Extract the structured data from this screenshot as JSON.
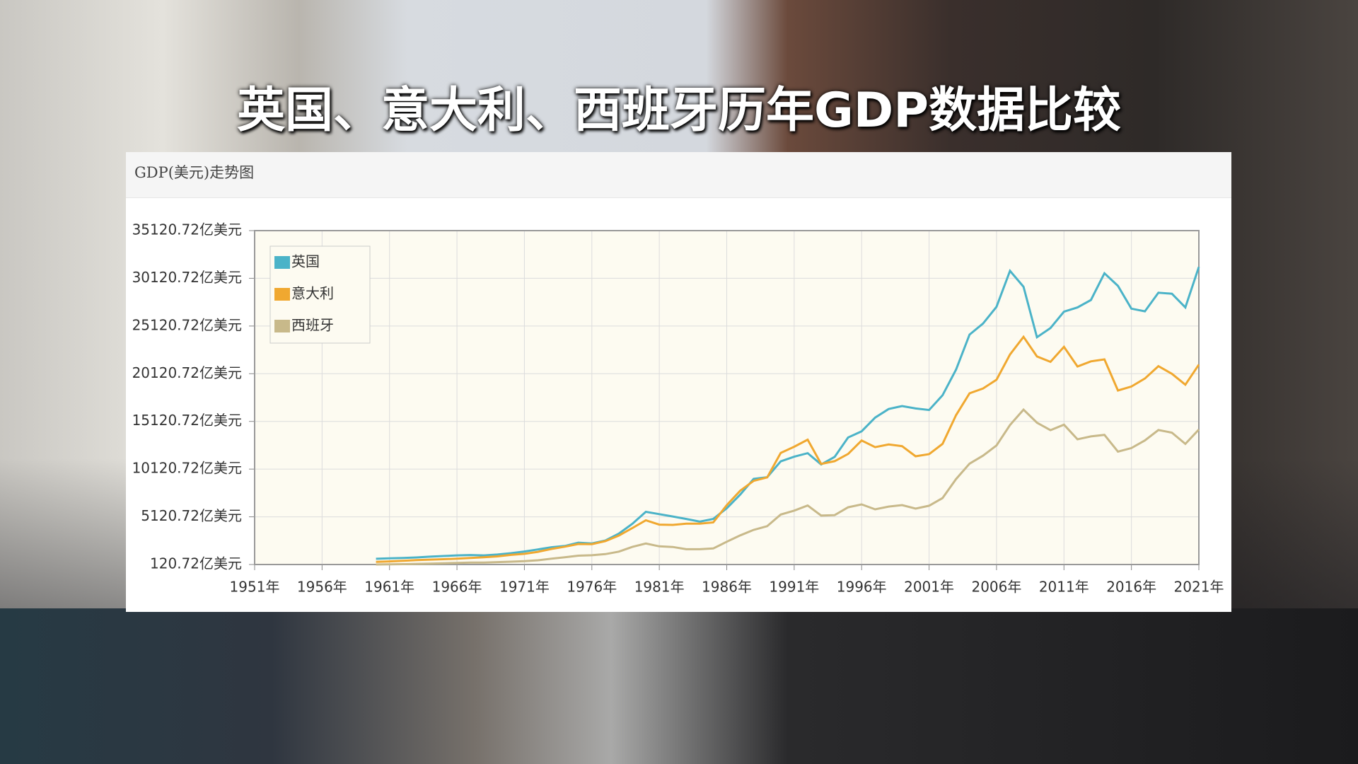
{
  "chart_data": {
    "type": "line",
    "title": "英国、意大利、西班牙历年GDP数据比较",
    "subtitle": "GDP(美元)走势图",
    "x": [
      1960,
      1961,
      1962,
      1963,
      1964,
      1965,
      1966,
      1967,
      1968,
      1969,
      1970,
      1971,
      1972,
      1973,
      1974,
      1975,
      1976,
      1977,
      1978,
      1979,
      1980,
      1981,
      1982,
      1983,
      1984,
      1985,
      1986,
      1987,
      1988,
      1989,
      1990,
      1991,
      1992,
      1993,
      1994,
      1995,
      1996,
      1997,
      1998,
      1999,
      2000,
      2001,
      2002,
      2003,
      2004,
      2005,
      2006,
      2007,
      2008,
      2009,
      2010,
      2011,
      2012,
      2013,
      2014,
      2015,
      2016,
      2017,
      2018,
      2019,
      2020,
      2021
    ],
    "series": [
      {
        "name": "英国",
        "color": "#4bb3c8",
        "values": [
          723,
          770,
          810,
          862,
          943,
          1013,
          1075,
          1114,
          1075,
          1167,
          1310,
          1484,
          1698,
          1929,
          2063,
          2415,
          2329,
          2632,
          3358,
          4384,
          5647,
          5403,
          5152,
          4898,
          4617,
          4893,
          6018,
          7458,
          9102,
          9268,
          10930,
          11425,
          11796,
          10612,
          11408,
          13441,
          14087,
          15524,
          16416,
          16728,
          16479,
          16319,
          17859,
          20547,
          24219,
          25385,
          27131,
          30905,
          29231,
          23944,
          24913,
          26622,
          27070,
          27847,
          30650,
          29329,
          26941,
          26660,
          28609,
          28510,
          27070,
          31313
        ]
      },
      {
        "name": "意大利",
        "color": "#f0a830",
        "values": [
          402,
          448,
          504,
          578,
          631,
          678,
          730,
          811,
          878,
          973,
          1131,
          1241,
          1446,
          1751,
          1992,
          2274,
          2256,
          2573,
          3150,
          3941,
          4752,
          4301,
          4275,
          4403,
          4397,
          4535,
          6343,
          7862,
          8895,
          9258,
          11815,
          12467,
          13208,
          10663,
          10955,
          11708,
          13122,
          12424,
          12707,
          12523,
          11467,
          11685,
          12764,
          15776,
          18064,
          18579,
          19493,
          22134,
          23985,
          21926,
          21366,
          22941,
          20874,
          21418,
          21625,
          18363,
          18779,
          19615,
          20916,
          20115,
          18968,
          21077
        ]
      },
      {
        "name": "西班牙",
        "color": "#c8b98a",
        "values": [
          120,
          139,
          160,
          191,
          218,
          255,
          294,
          328,
          327,
          371,
          414,
          468,
          568,
          727,
          886,
          1047,
          1095,
          1214,
          1470,
          1969,
          2324,
          2026,
          1962,
          1719,
          1724,
          1802,
          2508,
          3175,
          3754,
          4137,
          5354,
          5771,
          6306,
          5252,
          5299,
          6121,
          6420,
          5905,
          6192,
          6346,
          5982,
          6281,
          7087,
          9079,
          10696,
          11535,
          12602,
          14741,
          16352,
          14992,
          14201,
          14783,
          13248,
          13552,
          13716,
          11958,
          12328,
          13128,
          14217,
          13942,
          12765,
          14272
        ]
      }
    ],
    "xlim": [
      1951,
      2021
    ],
    "xticks": [
      {
        "value": 1951,
        "label": "1951年"
      },
      {
        "value": 1956,
        "label": "1956年"
      },
      {
        "value": 1961,
        "label": "1961年"
      },
      {
        "value": 1966,
        "label": "1966年"
      },
      {
        "value": 1971,
        "label": "1971年"
      },
      {
        "value": 1976,
        "label": "1976年"
      },
      {
        "value": 1981,
        "label": "1981年"
      },
      {
        "value": 1986,
        "label": "1986年"
      },
      {
        "value": 1991,
        "label": "1991年"
      },
      {
        "value": 1996,
        "label": "1996年"
      },
      {
        "value": 2001,
        "label": "2001年"
      },
      {
        "value": 2006,
        "label": "2006年"
      },
      {
        "value": 2011,
        "label": "2011年"
      },
      {
        "value": 2016,
        "label": "2016年"
      },
      {
        "value": 2021,
        "label": "2021年"
      }
    ],
    "ylim": [
      120.72,
      35120.72
    ],
    "yticks": [
      {
        "value": 120.72,
        "label": "120.72亿美元"
      },
      {
        "value": 5120.72,
        "label": "5120.72亿美元"
      },
      {
        "value": 10120.72,
        "label": "10120.72亿美元"
      },
      {
        "value": 15120.72,
        "label": "15120.72亿美元"
      },
      {
        "value": 20120.72,
        "label": "20120.72亿美元"
      },
      {
        "value": 25120.72,
        "label": "25120.72亿美元"
      },
      {
        "value": 30120.72,
        "label": "30120.72亿美元"
      },
      {
        "value": 35120.72,
        "label": "35120.72亿美元"
      }
    ],
    "grid": true,
    "legend": "top-left"
  }
}
